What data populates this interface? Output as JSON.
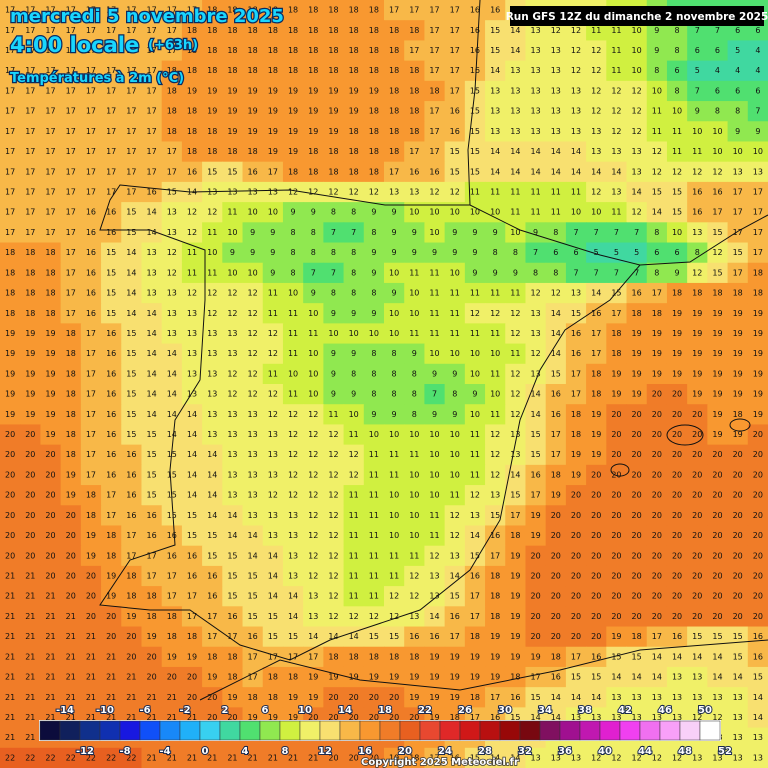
{
  "header": {
    "title": "mercredi 5 novembre 2025",
    "time": "4:00 locale",
    "offset": "(+63h)",
    "variable": "Températures à 2m (°C)",
    "run": "Run GFS 12Z du dimanche 2 novembre 2025"
  },
  "map": {
    "grid": [
      [
        17,
        17,
        17,
        17,
        17,
        17,
        17,
        17,
        17,
        17,
        18,
        18,
        18,
        18,
        18,
        18,
        18,
        18,
        18,
        17,
        17,
        17,
        17,
        16,
        16,
        14,
        13,
        13,
        12,
        12,
        11,
        11,
        8,
        7,
        7,
        7,
        7,
        6
      ],
      [
        17,
        17,
        17,
        17,
        17,
        17,
        17,
        17,
        17,
        18,
        18,
        18,
        18,
        18,
        18,
        18,
        18,
        18,
        18,
        18,
        18,
        17,
        17,
        16,
        15,
        14,
        13,
        12,
        12,
        11,
        11,
        10,
        9,
        8,
        7,
        7,
        6,
        6
      ],
      [
        17,
        17,
        17,
        17,
        17,
        17,
        17,
        17,
        17,
        18,
        18,
        18,
        18,
        18,
        18,
        18,
        18,
        18,
        18,
        18,
        17,
        17,
        17,
        16,
        15,
        14,
        13,
        13,
        12,
        12,
        11,
        10,
        9,
        8,
        6,
        6,
        5,
        4
      ],
      [
        17,
        17,
        17,
        17,
        17,
        17,
        17,
        17,
        18,
        18,
        18,
        18,
        18,
        18,
        18,
        18,
        18,
        18,
        18,
        18,
        18,
        17,
        17,
        16,
        14,
        13,
        13,
        13,
        12,
        12,
        11,
        10,
        8,
        6,
        5,
        4,
        4,
        4
      ],
      [
        17,
        17,
        17,
        17,
        17,
        17,
        17,
        17,
        18,
        19,
        19,
        19,
        19,
        19,
        19,
        19,
        19,
        19,
        19,
        18,
        18,
        18,
        17,
        15,
        13,
        13,
        13,
        13,
        13,
        12,
        12,
        12,
        10,
        8,
        7,
        6,
        6,
        6
      ],
      [
        17,
        17,
        17,
        17,
        17,
        17,
        17,
        17,
        18,
        18,
        19,
        19,
        19,
        19,
        19,
        19,
        19,
        19,
        18,
        18,
        18,
        17,
        16,
        15,
        13,
        13,
        13,
        13,
        13,
        12,
        12,
        12,
        11,
        10,
        9,
        8,
        8,
        7
      ],
      [
        17,
        17,
        17,
        17,
        17,
        17,
        17,
        17,
        18,
        18,
        18,
        19,
        19,
        19,
        19,
        19,
        19,
        18,
        18,
        18,
        18,
        17,
        16,
        15,
        13,
        13,
        13,
        13,
        13,
        13,
        12,
        12,
        11,
        11,
        10,
        10,
        9,
        9
      ],
      [
        17,
        17,
        17,
        17,
        17,
        17,
        17,
        17,
        17,
        18,
        18,
        18,
        18,
        19,
        19,
        18,
        18,
        18,
        18,
        18,
        17,
        17,
        15,
        15,
        14,
        14,
        14,
        14,
        14,
        13,
        13,
        13,
        12,
        11,
        11,
        10,
        10,
        10
      ],
      [
        17,
        17,
        17,
        17,
        17,
        17,
        17,
        17,
        17,
        16,
        15,
        15,
        16,
        17,
        18,
        18,
        18,
        18,
        18,
        17,
        16,
        16,
        15,
        15,
        14,
        14,
        14,
        14,
        14,
        14,
        14,
        13,
        12,
        12,
        12,
        12,
        13,
        13
      ],
      [
        17,
        17,
        17,
        17,
        17,
        17,
        17,
        16,
        15,
        14,
        13,
        13,
        13,
        13,
        12,
        12,
        12,
        12,
        12,
        13,
        13,
        12,
        12,
        11,
        11,
        11,
        11,
        11,
        11,
        12,
        13,
        14,
        15,
        15,
        16,
        16,
        17,
        17
      ],
      [
        17,
        17,
        17,
        17,
        16,
        16,
        15,
        14,
        13,
        12,
        12,
        11,
        10,
        10,
        9,
        9,
        8,
        8,
        9,
        9,
        10,
        10,
        10,
        10,
        10,
        11,
        11,
        11,
        10,
        10,
        11,
        12,
        14,
        15,
        16,
        17,
        17,
        17
      ],
      [
        17,
        17,
        17,
        17,
        16,
        16,
        15,
        14,
        13,
        12,
        11,
        10,
        9,
        9,
        8,
        8,
        7,
        7,
        8,
        9,
        9,
        10,
        9,
        9,
        9,
        10,
        9,
        8,
        7,
        7,
        7,
        7,
        8,
        10,
        13,
        15,
        17,
        17
      ],
      [
        18,
        18,
        18,
        17,
        16,
        15,
        14,
        13,
        12,
        11,
        10,
        9,
        9,
        9,
        8,
        8,
        8,
        8,
        9,
        9,
        9,
        9,
        9,
        9,
        8,
        8,
        7,
        6,
        6,
        5,
        5,
        5,
        6,
        6,
        8,
        12,
        15,
        17
      ],
      [
        18,
        18,
        18,
        17,
        16,
        15,
        14,
        13,
        12,
        11,
        11,
        10,
        10,
        9,
        8,
        7,
        7,
        8,
        9,
        10,
        11,
        11,
        10,
        9,
        9,
        9,
        8,
        8,
        7,
        7,
        7,
        7,
        8,
        9,
        12,
        15,
        17,
        18
      ],
      [
        18,
        18,
        18,
        17,
        16,
        15,
        14,
        13,
        13,
        12,
        12,
        12,
        12,
        11,
        10,
        9,
        8,
        8,
        8,
        9,
        10,
        11,
        11,
        11,
        11,
        11,
        12,
        12,
        13,
        14,
        15,
        16,
        17,
        18,
        18,
        18,
        18,
        18
      ],
      [
        18,
        18,
        18,
        17,
        16,
        15,
        14,
        14,
        13,
        13,
        12,
        12,
        12,
        11,
        11,
        10,
        9,
        9,
        9,
        10,
        10,
        11,
        11,
        12,
        12,
        12,
        13,
        14,
        15,
        16,
        17,
        18,
        18,
        19,
        19,
        19,
        19,
        19
      ],
      [
        19,
        19,
        19,
        18,
        17,
        16,
        15,
        14,
        13,
        13,
        13,
        13,
        12,
        12,
        11,
        11,
        10,
        10,
        10,
        10,
        11,
        11,
        11,
        11,
        11,
        12,
        13,
        14,
        16,
        17,
        18,
        19,
        19,
        19,
        19,
        19,
        19,
        19
      ],
      [
        19,
        19,
        19,
        18,
        17,
        16,
        15,
        14,
        14,
        13,
        13,
        13,
        12,
        12,
        11,
        10,
        9,
        9,
        8,
        8,
        9,
        10,
        10,
        10,
        10,
        11,
        12,
        14,
        16,
        17,
        18,
        19,
        19,
        19,
        19,
        19,
        19,
        19
      ],
      [
        19,
        19,
        19,
        18,
        17,
        16,
        15,
        14,
        14,
        13,
        13,
        12,
        12,
        11,
        10,
        10,
        9,
        8,
        8,
        8,
        8,
        9,
        9,
        10,
        11,
        12,
        13,
        15,
        17,
        18,
        19,
        19,
        19,
        19,
        19,
        19,
        19,
        19
      ],
      [
        19,
        19,
        19,
        18,
        17,
        16,
        15,
        14,
        14,
        13,
        13,
        12,
        12,
        12,
        11,
        10,
        9,
        9,
        8,
        8,
        8,
        7,
        8,
        9,
        10,
        12,
        14,
        16,
        17,
        18,
        19,
        19,
        20,
        20,
        19,
        19,
        19,
        19
      ],
      [
        19,
        19,
        19,
        18,
        17,
        16,
        15,
        14,
        14,
        14,
        13,
        13,
        13,
        12,
        12,
        12,
        11,
        10,
        9,
        9,
        8,
        9,
        9,
        10,
        11,
        12,
        14,
        16,
        18,
        19,
        20,
        20,
        20,
        20,
        20,
        19,
        18,
        19
      ],
      [
        20,
        20,
        19,
        18,
        17,
        16,
        15,
        15,
        14,
        14,
        13,
        13,
        13,
        13,
        12,
        12,
        12,
        11,
        10,
        10,
        10,
        10,
        10,
        11,
        12,
        13,
        15,
        17,
        18,
        19,
        20,
        20,
        20,
        20,
        20,
        19,
        19,
        20
      ],
      [
        20,
        20,
        20,
        18,
        17,
        16,
        16,
        15,
        15,
        14,
        14,
        13,
        13,
        13,
        12,
        12,
        12,
        12,
        11,
        11,
        11,
        10,
        10,
        11,
        12,
        13,
        15,
        17,
        19,
        19,
        20,
        20,
        20,
        20,
        20,
        20,
        20,
        20
      ],
      [
        20,
        20,
        20,
        19,
        17,
        16,
        16,
        15,
        15,
        14,
        14,
        13,
        13,
        13,
        12,
        12,
        12,
        12,
        11,
        11,
        10,
        10,
        10,
        11,
        12,
        14,
        16,
        18,
        19,
        20,
        20,
        20,
        20,
        20,
        20,
        20,
        20,
        20
      ],
      [
        20,
        20,
        20,
        19,
        18,
        17,
        16,
        15,
        15,
        14,
        14,
        13,
        13,
        12,
        12,
        12,
        12,
        11,
        11,
        10,
        10,
        10,
        11,
        12,
        13,
        15,
        17,
        19,
        20,
        20,
        20,
        20,
        20,
        20,
        20,
        20,
        20,
        20
      ],
      [
        20,
        20,
        20,
        20,
        18,
        17,
        16,
        16,
        15,
        15,
        14,
        14,
        13,
        13,
        13,
        12,
        12,
        11,
        11,
        10,
        10,
        11,
        12,
        13,
        15,
        17,
        19,
        20,
        20,
        20,
        20,
        20,
        20,
        20,
        20,
        20,
        20,
        20
      ],
      [
        20,
        20,
        20,
        20,
        19,
        18,
        17,
        16,
        16,
        15,
        15,
        14,
        14,
        13,
        13,
        12,
        12,
        11,
        11,
        10,
        10,
        11,
        12,
        14,
        16,
        18,
        19,
        20,
        20,
        20,
        20,
        20,
        20,
        20,
        20,
        20,
        20,
        20
      ],
      [
        20,
        20,
        20,
        20,
        19,
        18,
        17,
        17,
        16,
        16,
        15,
        15,
        14,
        14,
        13,
        12,
        12,
        11,
        11,
        11,
        11,
        12,
        13,
        15,
        17,
        19,
        20,
        20,
        20,
        20,
        20,
        20,
        20,
        20,
        20,
        20,
        20,
        20
      ],
      [
        21,
        21,
        20,
        20,
        20,
        19,
        18,
        17,
        17,
        16,
        16,
        15,
        15,
        14,
        13,
        12,
        12,
        11,
        11,
        11,
        12,
        13,
        14,
        16,
        18,
        19,
        20,
        20,
        20,
        20,
        20,
        20,
        20,
        20,
        20,
        20,
        20,
        20
      ],
      [
        21,
        21,
        21,
        20,
        20,
        19,
        18,
        18,
        17,
        17,
        16,
        15,
        15,
        14,
        14,
        13,
        12,
        11,
        11,
        12,
        12,
        13,
        15,
        17,
        18,
        19,
        20,
        20,
        20,
        20,
        20,
        20,
        20,
        20,
        20,
        20,
        20,
        20
      ],
      [
        21,
        21,
        21,
        21,
        20,
        20,
        19,
        18,
        18,
        17,
        17,
        16,
        15,
        15,
        14,
        13,
        12,
        12,
        12,
        12,
        13,
        14,
        16,
        17,
        18,
        19,
        20,
        20,
        20,
        20,
        20,
        20,
        20,
        20,
        20,
        20,
        20,
        20
      ],
      [
        21,
        21,
        21,
        21,
        21,
        20,
        20,
        19,
        18,
        18,
        17,
        17,
        16,
        15,
        15,
        14,
        14,
        14,
        15,
        15,
        16,
        16,
        17,
        18,
        19,
        19,
        20,
        20,
        20,
        20,
        19,
        18,
        17,
        16,
        15,
        15,
        15,
        16
      ],
      [
        21,
        21,
        21,
        21,
        21,
        21,
        20,
        20,
        19,
        19,
        18,
        18,
        17,
        17,
        17,
        17,
        18,
        18,
        18,
        18,
        18,
        19,
        19,
        19,
        19,
        19,
        19,
        18,
        17,
        16,
        15,
        15,
        14,
        14,
        14,
        14,
        15,
        16
      ],
      [
        21,
        21,
        21,
        21,
        21,
        21,
        21,
        20,
        20,
        20,
        19,
        18,
        17,
        18,
        18,
        19,
        19,
        19,
        19,
        19,
        19,
        19,
        19,
        19,
        19,
        18,
        17,
        16,
        15,
        15,
        14,
        14,
        14,
        13,
        13,
        14,
        14,
        15
      ],
      [
        21,
        21,
        21,
        21,
        21,
        21,
        21,
        21,
        21,
        20,
        20,
        19,
        18,
        18,
        19,
        19,
        20,
        20,
        20,
        20,
        19,
        19,
        19,
        18,
        17,
        16,
        15,
        14,
        14,
        14,
        13,
        13,
        13,
        13,
        13,
        13,
        13,
        14
      ],
      [
        21,
        21,
        21,
        21,
        21,
        21,
        21,
        21,
        21,
        21,
        20,
        20,
        19,
        19,
        19,
        20,
        20,
        20,
        20,
        20,
        20,
        19,
        18,
        17,
        16,
        15,
        14,
        14,
        13,
        13,
        13,
        13,
        13,
        13,
        12,
        12,
        13,
        14
      ],
      [
        21,
        21,
        21,
        21,
        21,
        21,
        21,
        21,
        21,
        21,
        21,
        20,
        20,
        20,
        20,
        20,
        20,
        20,
        20,
        20,
        19,
        18,
        17,
        16,
        15,
        14,
        14,
        13,
        13,
        13,
        12,
        12,
        12,
        12,
        12,
        13,
        13,
        13
      ],
      [
        22,
        22,
        22,
        22,
        22,
        22,
        22,
        21,
        21,
        21,
        21,
        21,
        21,
        21,
        21,
        21,
        20,
        20,
        20,
        19,
        18,
        17,
        16,
        15,
        14,
        14,
        13,
        13,
        13,
        12,
        12,
        12,
        12,
        12,
        13,
        13,
        13,
        13
      ]
    ]
  },
  "legend": {
    "ticks": [
      -14,
      -12,
      -10,
      -8,
      -6,
      -4,
      -2,
      0,
      2,
      4,
      6,
      8,
      10,
      12,
      14,
      16,
      18,
      20,
      22,
      24,
      26,
      28,
      30,
      32,
      34,
      36,
      38,
      40,
      42,
      44,
      46,
      48,
      50,
      52
    ],
    "colors": [
      "#0c0c3c",
      "#10205c",
      "#10308c",
      "#1030b0",
      "#1818e0",
      "#1050f8",
      "#1888f8",
      "#20b0f8",
      "#38d0f0",
      "#40d8a0",
      "#50e070",
      "#90e850",
      "#d0f040",
      "#f0f068",
      "#f8e070",
      "#f8b848",
      "#f89830",
      "#f07c28",
      "#e86020",
      "#e84830",
      "#e02828",
      "#d01818",
      "#b81010",
      "#980808",
      "#780810",
      "#801060",
      "#a01090",
      "#c018b0",
      "#e020d0",
      "#f040f0",
      "#f070f0",
      "#f8a0f8",
      "#f8d0f8",
      "#ffffff"
    ]
  },
  "footer": {
    "copyright": "Copyright 2025 Meteociel.fr"
  }
}
